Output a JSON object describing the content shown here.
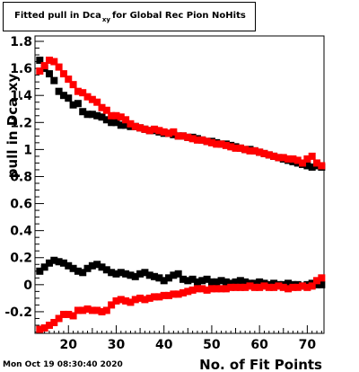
{
  "title": {
    "prefix": "Fitted pull in Dca",
    "subscript": "xy",
    "suffix": "for Global Rec Pion NoHits"
  },
  "timestamp": "Mon Oct 19 08:30:40 2020",
  "colors": {
    "series_black": "#000000",
    "series_red": "#ff0000",
    "axis": "#000000"
  },
  "chart_data": {
    "type": "scatter",
    "title": "Fitted pull in Dca_xy for Global Rec Pion NoHits",
    "xlabel": "No. of Fit Points",
    "ylabel": "pull in Dca_xy",
    "xlim": [
      13,
      73.5
    ],
    "ylim": [
      -0.36,
      1.84
    ],
    "x_ticks": [
      20,
      30,
      40,
      50,
      60,
      70
    ],
    "x_tick_labels": [
      "20",
      "30",
      "40",
      "50",
      "60",
      "70"
    ],
    "y_ticks": [
      -0.2,
      0,
      0.2,
      0.4,
      0.6,
      0.8,
      1,
      1.2,
      1.4,
      1.6,
      1.8
    ],
    "y_tick_labels": [
      "-0.2",
      "0",
      "0.2",
      "0.4",
      "0.6",
      "0.8",
      "1",
      "1.2",
      "1.4",
      "1.6",
      "1.8"
    ],
    "x": [
      14,
      15,
      16,
      17,
      18,
      19,
      20,
      21,
      22,
      23,
      24,
      25,
      26,
      27,
      28,
      29,
      30,
      31,
      32,
      33,
      34,
      35,
      36,
      37,
      38,
      39,
      40,
      41,
      42,
      43,
      44,
      45,
      46,
      47,
      48,
      49,
      50,
      51,
      52,
      53,
      54,
      55,
      56,
      57,
      58,
      59,
      60,
      61,
      62,
      63,
      64,
      65,
      66,
      67,
      68,
      69,
      70,
      71,
      72,
      73
    ],
    "series": [
      {
        "values": [
          1.66,
          1.6,
          1.56,
          1.51,
          1.43,
          1.4,
          1.38,
          1.33,
          1.34,
          1.28,
          1.26,
          1.26,
          1.25,
          1.24,
          1.22,
          1.2,
          1.2,
          1.18,
          1.18,
          1.17,
          1.17,
          1.16,
          1.15,
          1.14,
          1.14,
          1.13,
          1.12,
          1.12,
          1.11,
          1.1,
          1.1,
          1.09,
          1.09,
          1.08,
          1.07,
          1.06,
          1.06,
          1.05,
          1.04,
          1.04,
          1.03,
          1.02,
          1.01,
          1.0,
          1.0,
          0.99,
          0.98,
          0.97,
          0.96,
          0.95,
          0.94,
          0.93,
          0.92,
          0.91,
          0.9,
          0.89,
          0.88,
          0.87,
          0.88,
          0.87
        ]
      },
      {
        "values": [
          1.58,
          1.62,
          1.66,
          1.65,
          1.61,
          1.56,
          1.52,
          1.48,
          1.43,
          1.42,
          1.39,
          1.37,
          1.35,
          1.31,
          1.29,
          1.25,
          1.25,
          1.24,
          1.22,
          1.19,
          1.17,
          1.16,
          1.15,
          1.14,
          1.15,
          1.14,
          1.13,
          1.12,
          1.13,
          1.1,
          1.1,
          1.09,
          1.08,
          1.07,
          1.07,
          1.06,
          1.05,
          1.04,
          1.04,
          1.03,
          1.02,
          1.01,
          1.01,
          1.0,
          0.99,
          0.99,
          0.98,
          0.97,
          0.96,
          0.95,
          0.94,
          0.94,
          0.93,
          0.93,
          0.92,
          0.9,
          0.93,
          0.95,
          0.9,
          0.88
        ]
      },
      {
        "values": [
          0.1,
          0.13,
          0.16,
          0.18,
          0.17,
          0.16,
          0.14,
          0.12,
          0.1,
          0.09,
          0.12,
          0.14,
          0.15,
          0.13,
          0.11,
          0.09,
          0.08,
          0.09,
          0.08,
          0.07,
          0.06,
          0.08,
          0.09,
          0.07,
          0.06,
          0.05,
          0.03,
          0.05,
          0.07,
          0.08,
          0.04,
          0.03,
          0.04,
          0.02,
          0.03,
          0.04,
          0.02,
          0.02,
          0.03,
          0.02,
          0.01,
          0.02,
          0.03,
          0.02,
          0.01,
          0.01,
          0.02,
          0.01,
          0.0,
          0.01,
          0.0,
          0.0,
          0.01,
          0.0,
          0.0,
          -0.01,
          0.0,
          0.01,
          0.0,
          0.0
        ]
      },
      {
        "values": [
          -0.33,
          -0.32,
          -0.3,
          -0.28,
          -0.25,
          -0.22,
          -0.22,
          -0.23,
          -0.19,
          -0.19,
          -0.18,
          -0.19,
          -0.19,
          -0.2,
          -0.19,
          -0.15,
          -0.12,
          -0.11,
          -0.12,
          -0.13,
          -0.11,
          -0.1,
          -0.11,
          -0.1,
          -0.09,
          -0.09,
          -0.08,
          -0.08,
          -0.07,
          -0.07,
          -0.06,
          -0.05,
          -0.04,
          -0.03,
          -0.03,
          -0.04,
          -0.03,
          -0.03,
          -0.03,
          -0.03,
          -0.02,
          -0.02,
          -0.02,
          -0.02,
          -0.01,
          -0.02,
          -0.02,
          -0.01,
          -0.02,
          -0.02,
          -0.01,
          -0.02,
          -0.03,
          -0.02,
          -0.02,
          -0.01,
          -0.02,
          -0.01,
          0.03,
          0.05
        ]
      }
    ],
    "series_colors": [
      "#000000",
      "#ff0000",
      "#000000",
      "#ff0000"
    ]
  }
}
